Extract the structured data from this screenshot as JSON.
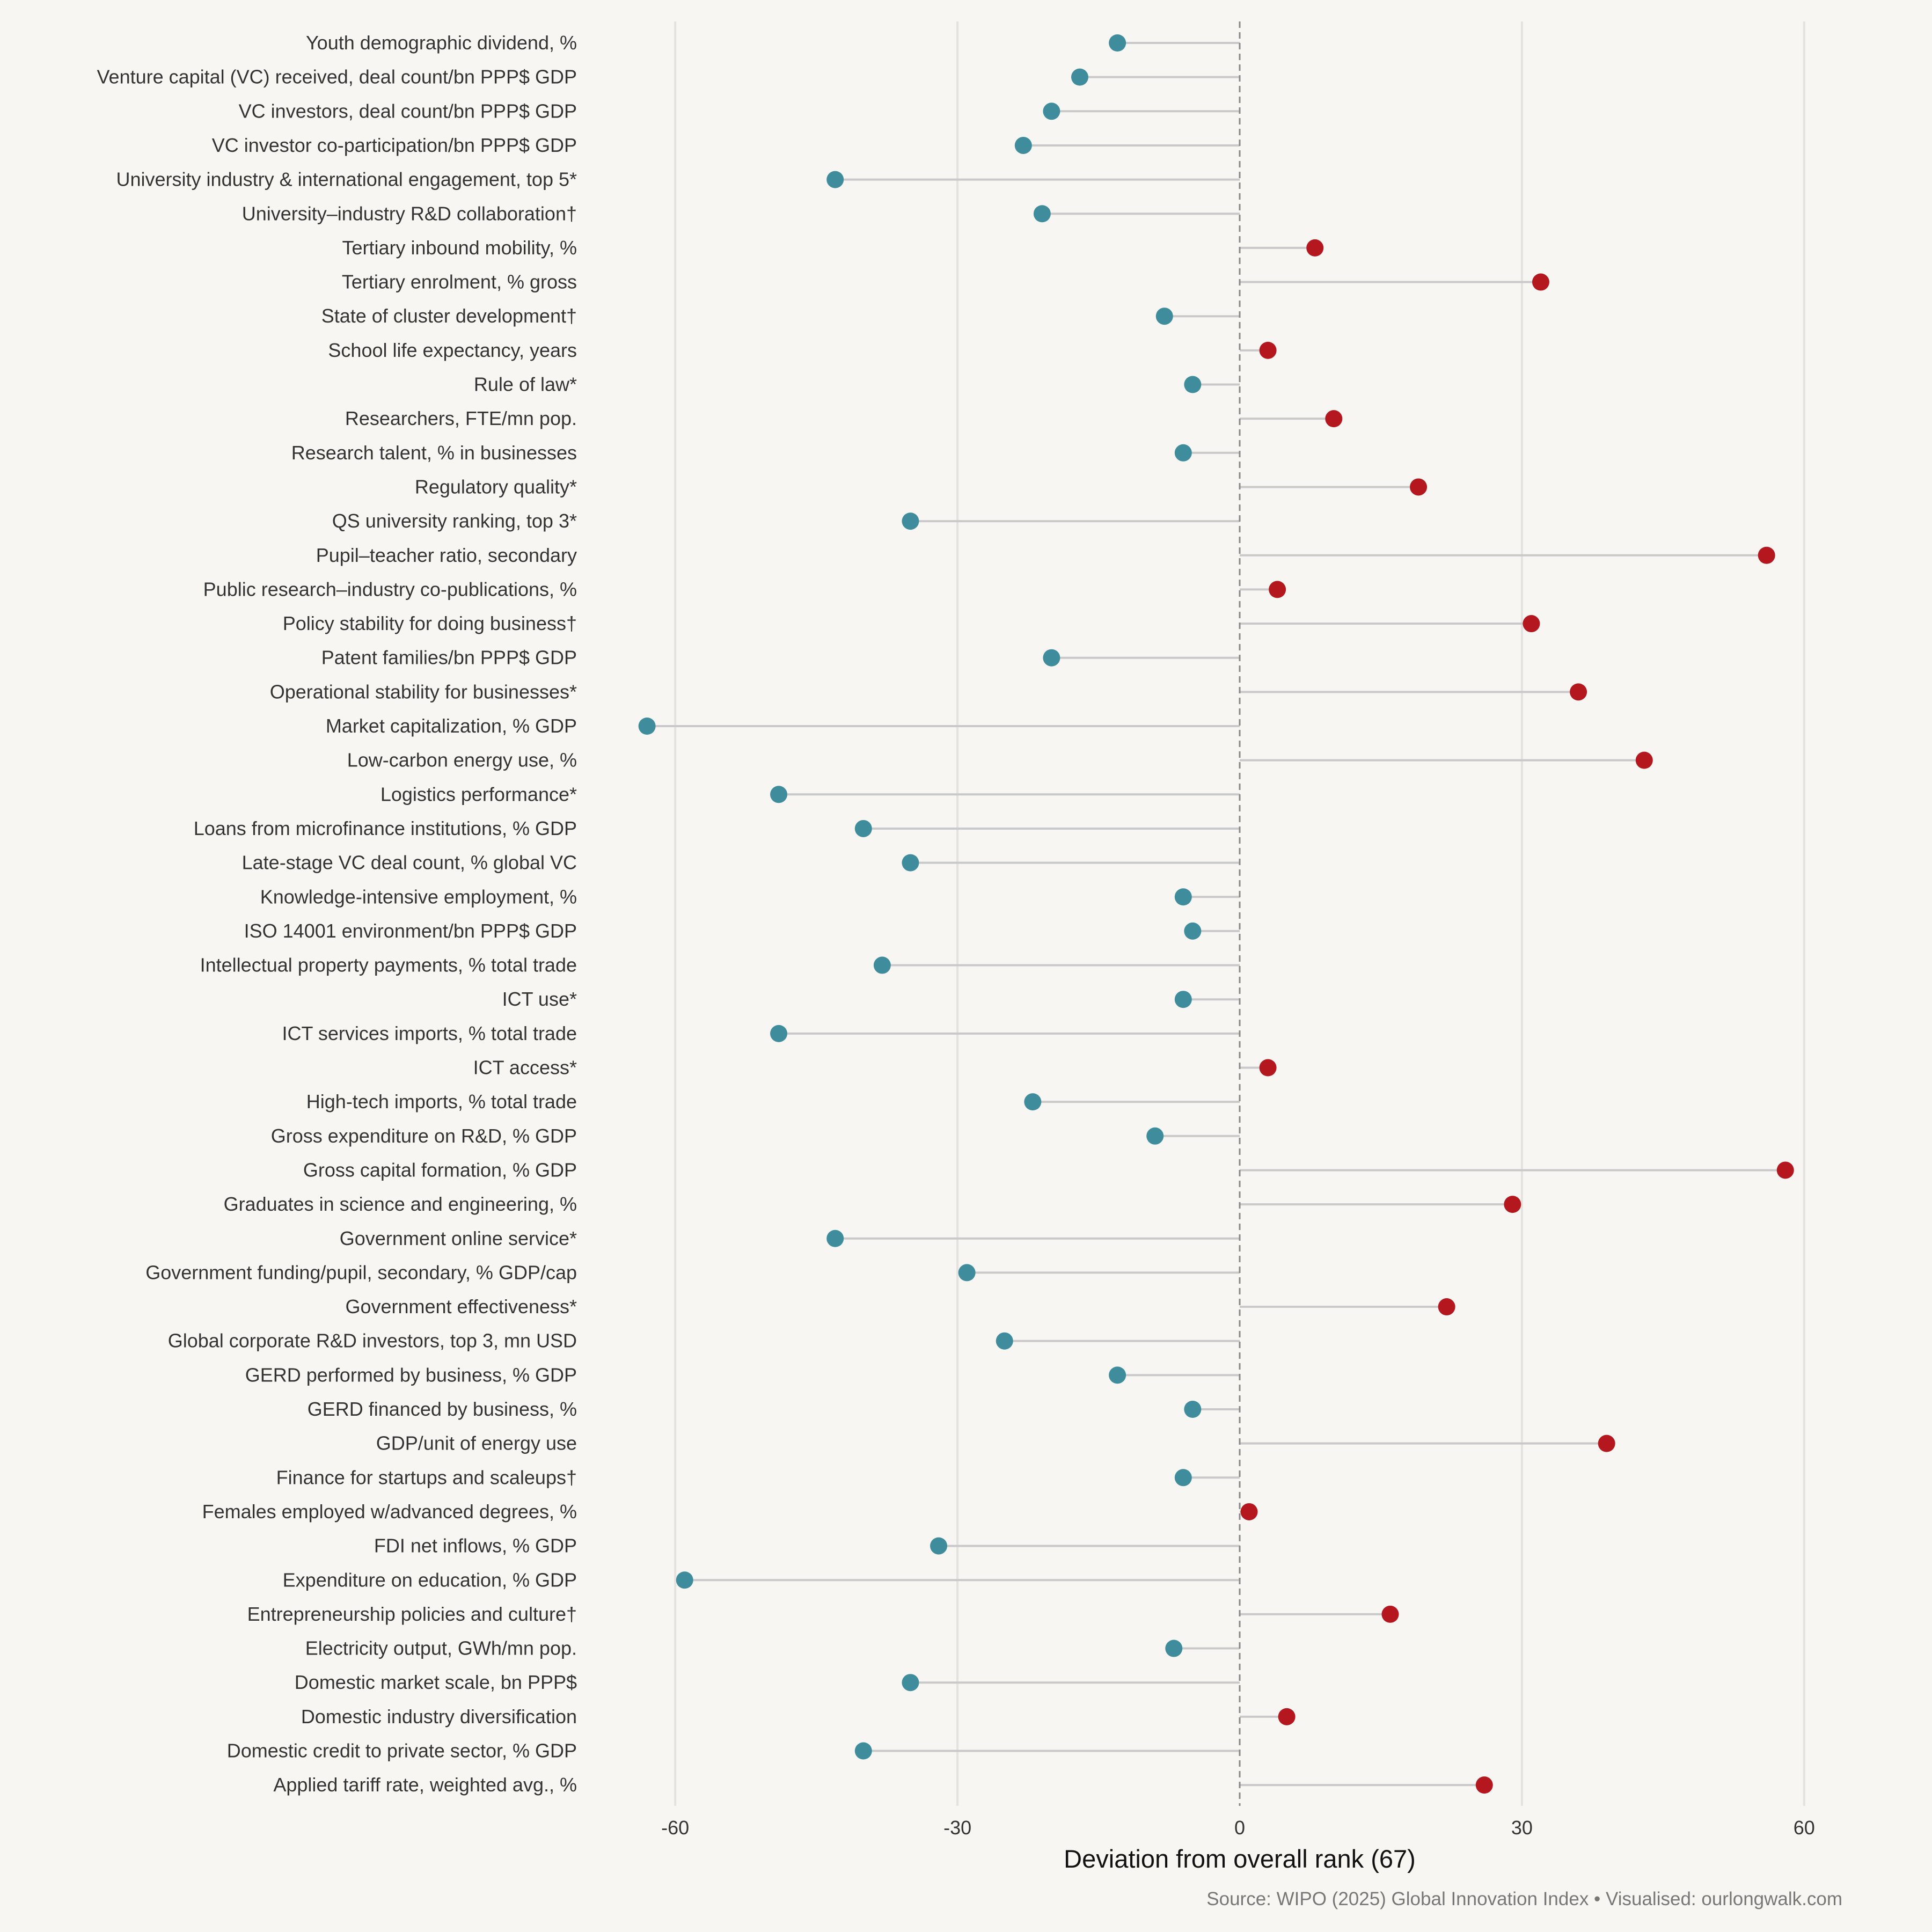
{
  "chart_data": {
    "type": "lollipop",
    "xlabel": "Deviation from overall rank (67)",
    "source": "Source: WIPO (2025) Global Innovation Index • Visualised: ourlongwalk.com",
    "xlim": [
      -70,
      70
    ],
    "xticks": [
      -60,
      -30,
      0,
      30,
      60
    ],
    "grid": true,
    "colors": {
      "negative": "#3f8d9c",
      "positive": "#b5171f",
      "stem": "#c9c9cb",
      "zero_line": "#888888",
      "grid": "#e3e2df"
    },
    "categories": [
      "Youth demographic dividend, %",
      "Venture capital (VC) received, deal count/bn PPP$ GDP",
      "VC investors, deal count/bn PPP$ GDP",
      "VC investor co-participation/bn PPP$ GDP",
      "University industry & international engagement, top 5*",
      "University–industry R&D collaboration†",
      "Tertiary inbound mobility, %",
      "Tertiary enrolment, % gross",
      "State of cluster development†",
      "School life expectancy, years",
      "Rule of law*",
      "Researchers, FTE/mn pop.",
      "Research talent, % in businesses",
      "Regulatory quality*",
      "QS university ranking, top 3*",
      "Pupil–teacher ratio, secondary",
      "Public research–industry co-publications, %",
      "Policy stability for doing business†",
      "Patent families/bn PPP$ GDP",
      "Operational stability for businesses*",
      "Market capitalization, % GDP",
      "Low-carbon energy use, %",
      "Logistics performance*",
      "Loans from microfinance institutions, % GDP",
      "Late-stage VC deal count, % global VC",
      "Knowledge-intensive employment, %",
      "ISO 14001 environment/bn PPP$ GDP",
      "Intellectual property payments, % total trade",
      "ICT use*",
      "ICT services imports, % total trade",
      "ICT access*",
      "High-tech imports, % total trade",
      "Gross expenditure on R&D, % GDP",
      "Gross capital formation, % GDP",
      "Graduates in science and engineering, %",
      "Government online service*",
      "Government funding/pupil, secondary, % GDP/cap",
      "Government effectiveness*",
      "Global corporate R&D investors, top 3, mn USD",
      "GERD performed by business, % GDP",
      "GERD financed by business, %",
      "GDP/unit of energy use",
      "Finance for startups and scaleups†",
      "Females employed w/advanced degrees, %",
      "FDI net inflows, % GDP",
      "Expenditure on education, % GDP",
      "Entrepreneurship policies and culture†",
      "Electricity output, GWh/mn pop.",
      "Domestic market scale, bn PPP$",
      "Domestic industry diversification",
      "Domestic credit to private sector, % GDP",
      "Applied tariff rate, weighted avg., %"
    ],
    "values": [
      -13,
      -17,
      -20,
      -23,
      -43,
      -21,
      8,
      32,
      -8,
      3,
      -5,
      10,
      -6,
      19,
      -35,
      56,
      4,
      31,
      -20,
      36,
      -63,
      43,
      -49,
      -40,
      -35,
      -6,
      -5,
      -38,
      -6,
      -49,
      3,
      -22,
      -9,
      58,
      29,
      -43,
      -29,
      22,
      -25,
      -13,
      -5,
      39,
      -6,
      1,
      -32,
      -59,
      16,
      -7,
      -35,
      5,
      -40,
      26
    ]
  }
}
